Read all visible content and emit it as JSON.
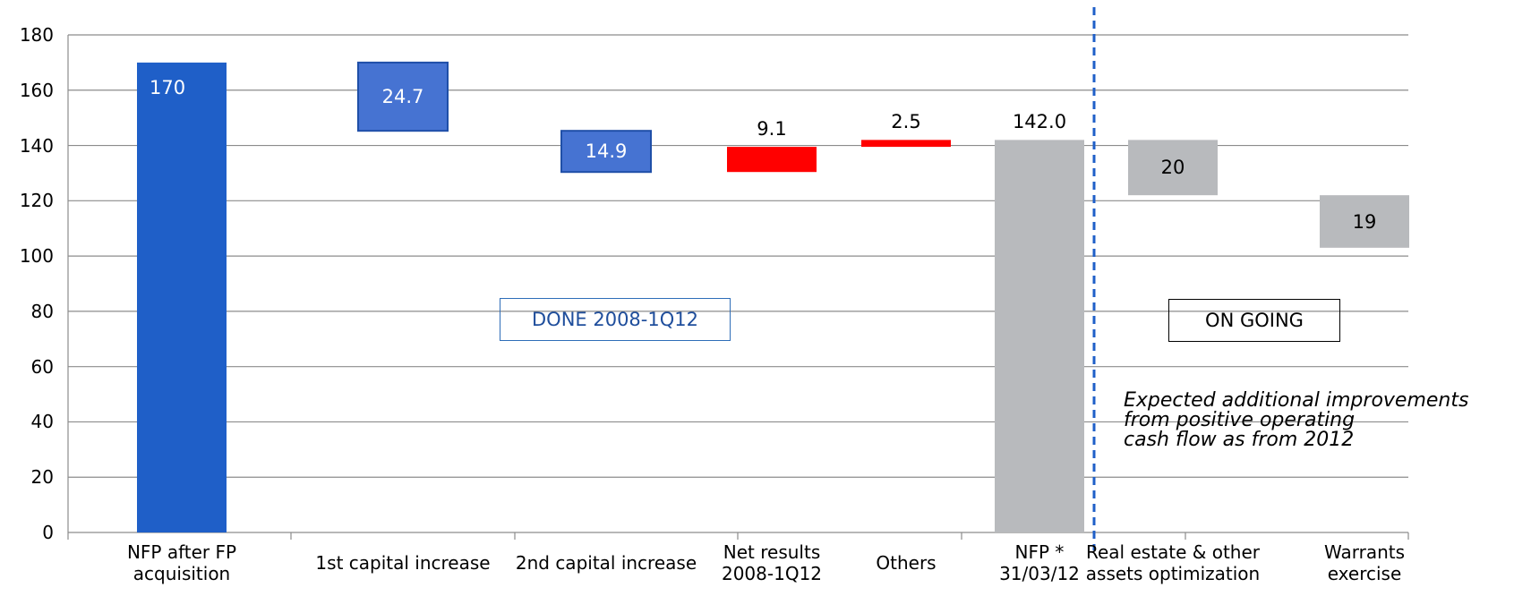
{
  "chart_data": {
    "type": "waterfall",
    "categories": [
      "NFP after FP\nacquisition",
      "1st capital increase",
      "2nd capital increase",
      "Net results\n2008-1Q12",
      "Others",
      "NFP *\n31/03/12",
      "Real estate & other\nassets optimization",
      "Warrants\nexercise"
    ],
    "values": [
      170,
      24.7,
      14.9,
      9.1,
      2.5,
      142.0,
      20,
      19
    ],
    "value_labels": [
      "170",
      "24.7",
      "14.9",
      "9.1",
      "2.5",
      "142.0",
      "20",
      "19"
    ],
    "measure": [
      "total",
      "decrease",
      "decrease",
      "increase",
      "increase",
      "total",
      "decrease",
      "decrease"
    ],
    "colors": [
      "#1f5fc8",
      "#4673d2",
      "#4673d2",
      "#ff0000",
      "#ff0000",
      "#b8babd",
      "#b8babd",
      "#b8babd"
    ],
    "ylim": [
      0,
      180
    ],
    "yticks": [
      0,
      20,
      40,
      60,
      80,
      100,
      120,
      140,
      160,
      180
    ],
    "grid": true,
    "annotations": [
      "DONE  2008-1Q12",
      "ON GOING",
      "Expected additional improvements\n from positive operating\ncash flow as from 2012"
    ]
  }
}
